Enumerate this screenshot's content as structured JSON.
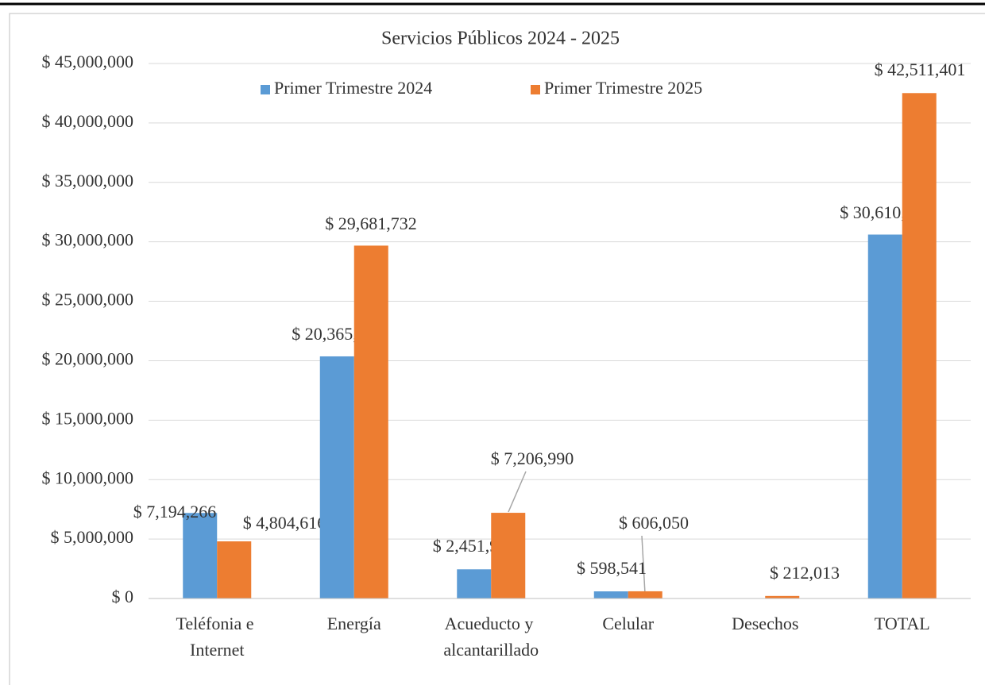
{
  "chart_data": {
    "type": "bar",
    "title": "Servicios Públicos 2024 - 2025",
    "categories": [
      "Teléfonia e Internet",
      "Energía",
      "Acueducto y alcantarillado",
      "Celular",
      "Desechos",
      "TOTAL"
    ],
    "series": [
      {
        "name": "Primer Trimestre 2024",
        "color": "#5b9bd5",
        "values": [
          7194266,
          20365669,
          2451980,
          598541,
          null,
          30610456
        ],
        "value_labels": [
          "$ 7,194,266",
          "$ 20,365,669",
          "$ 2,451,980",
          "$ 598,541",
          null,
          "$ 30,610,456"
        ]
      },
      {
        "name": "Primer Trimestre 2025",
        "color": "#ed7d31",
        "values": [
          4804616,
          29681732,
          7206990,
          606050,
          212013,
          42511401
        ],
        "value_labels": [
          "$ 4,804,616",
          "$ 29,681,732",
          "$ 7,206,990",
          "$ 606,050",
          "$ 212,013",
          "$ 42,511,401"
        ]
      }
    ],
    "ylim": [
      0,
      45000000
    ],
    "yticks": [
      {
        "value": 0,
        "label": "$ 0"
      },
      {
        "value": 5000000,
        "label": "$ 5,000,000"
      },
      {
        "value": 10000000,
        "label": "$ 10,000,000"
      },
      {
        "value": 15000000,
        "label": "$ 15,000,000"
      },
      {
        "value": 20000000,
        "label": "$ 20,000,000"
      },
      {
        "value": 25000000,
        "label": "$ 25,000,000"
      },
      {
        "value": 30000000,
        "label": "$ 30,000,000"
      },
      {
        "value": 35000000,
        "label": "$ 35,000,000"
      },
      {
        "value": 40000000,
        "label": "$ 40,000,000"
      },
      {
        "value": 45000000,
        "label": "$ 45,000,000"
      }
    ],
    "grid": true,
    "legend": "top"
  }
}
